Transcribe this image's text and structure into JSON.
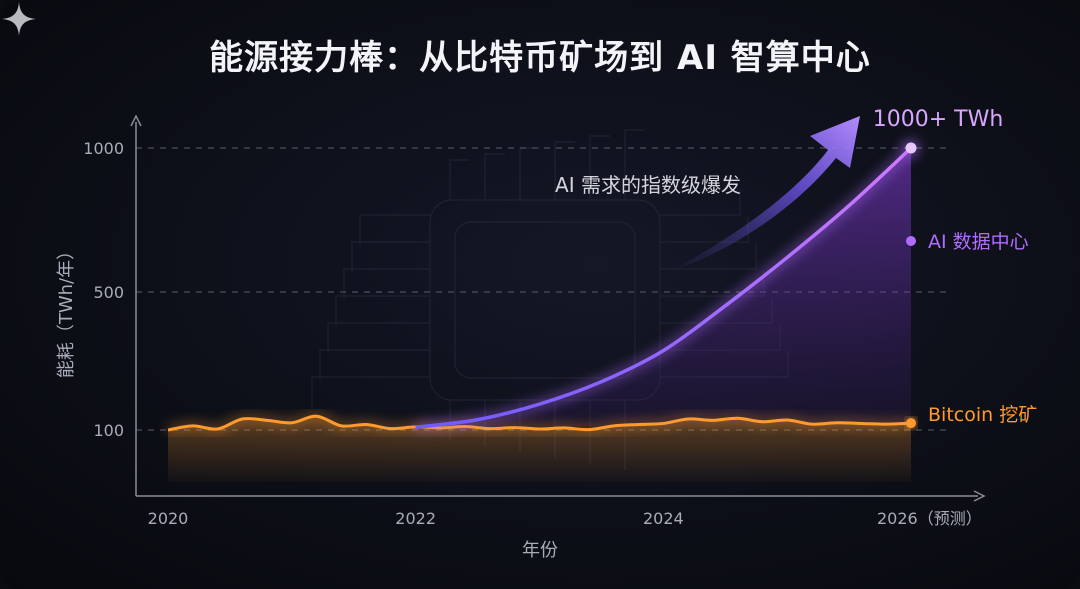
{
  "title": "能源接力棒：从比特币矿场到 AI 智算中心",
  "colors": {
    "ai": "#b06cff",
    "bitcoin": "#ff9b2e",
    "axis": "#8a8d99",
    "text": "#f4f4f8"
  },
  "chart_data": {
    "type": "line",
    "xlabel": "年份",
    "ylabel": "能耗（TWh/年）",
    "x_ticks": [
      "2020",
      "2022",
      "2024",
      "2026（预测）"
    ],
    "y_ticks": [
      100,
      500,
      1000
    ],
    "series": [
      {
        "name": "AI 数据中心",
        "color": "#b06cff",
        "x": [
          2022.0,
          2022.5,
          2023.0,
          2023.5,
          2024.0,
          2024.5,
          2025.0,
          2025.5,
          2026.0
        ],
        "values": [
          108,
          130,
          175,
          240,
          330,
          460,
          620,
          800,
          1000
        ]
      },
      {
        "name": "Bitcoin 挖矿",
        "color": "#ff9b2e",
        "x": [
          2020.0,
          2020.2,
          2020.4,
          2020.6,
          2020.8,
          2021.0,
          2021.2,
          2021.4,
          2021.6,
          2021.8,
          2022.0,
          2022.2,
          2022.4,
          2022.6,
          2022.8,
          2023.0,
          2023.2,
          2023.4,
          2023.6,
          2023.8,
          2024.0,
          2024.2,
          2024.4,
          2024.6,
          2024.8,
          2025.0,
          2025.2,
          2025.4,
          2025.6,
          2025.8,
          2026.0
        ],
        "values": [
          100,
          112,
          103,
          132,
          128,
          121,
          140,
          112,
          116,
          104,
          109,
          106,
          110,
          104,
          107,
          103,
          106,
          101,
          112,
          116,
          119,
          132,
          128,
          134,
          124,
          129,
          117,
          121,
          119,
          117,
          120
        ]
      }
    ],
    "annotations": {
      "peak_label": "1000+ TWh",
      "trend_label": "AI 需求的指数级爆发"
    },
    "grid": "dashed horizontal",
    "legend_placement": "right (labels at line ends)"
  }
}
